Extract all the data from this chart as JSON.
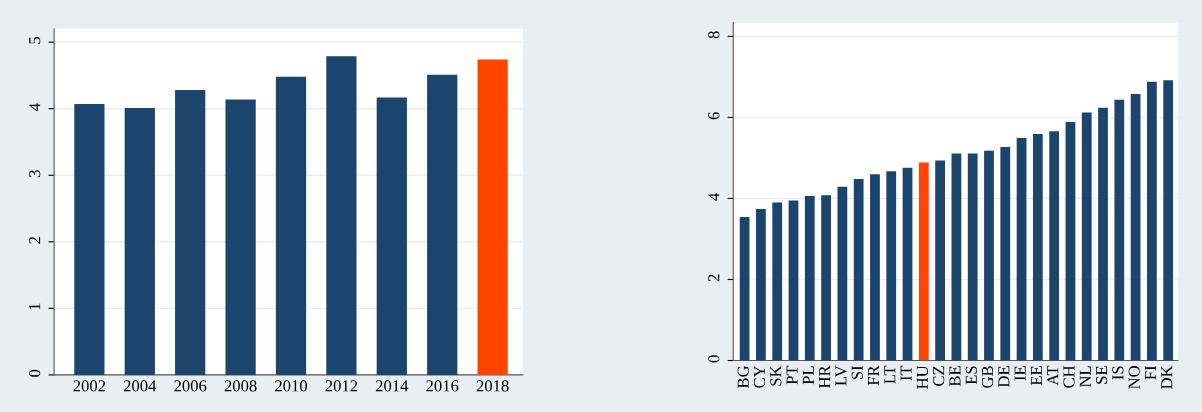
{
  "chart_data": [
    {
      "type": "bar",
      "categories": [
        "2002",
        "2004",
        "2006",
        "2008",
        "2010",
        "2012",
        "2014",
        "2016",
        "2018"
      ],
      "values": [
        4.07,
        4.01,
        4.28,
        4.14,
        4.48,
        4.79,
        4.17,
        4.51,
        4.74
      ],
      "colors": [
        "#1c456e",
        "#1c456e",
        "#1c456e",
        "#1c456e",
        "#1c456e",
        "#1c456e",
        "#1c456e",
        "#1c456e",
        "#ff4500"
      ],
      "ylim": [
        0,
        5.2
      ],
      "yticks": [
        0,
        1,
        2,
        3,
        4,
        5
      ],
      "grid": "y"
    },
    {
      "type": "bar",
      "categories": [
        "BG",
        "CY",
        "SK",
        "PT",
        "PL",
        "HR",
        "LV",
        "SI",
        "FR",
        "LT",
        "IT",
        "HU",
        "CZ",
        "BE",
        "ES",
        "GB",
        "DE",
        "IE",
        "EE",
        "AT",
        "CH",
        "NL",
        "SE",
        "IS",
        "NO",
        "FI",
        "DK"
      ],
      "values": [
        3.54,
        3.74,
        3.9,
        3.95,
        4.06,
        4.08,
        4.29,
        4.48,
        4.6,
        4.67,
        4.76,
        4.89,
        4.94,
        5.11,
        5.11,
        5.18,
        5.27,
        5.49,
        5.59,
        5.66,
        5.89,
        6.12,
        6.24,
        6.44,
        6.58,
        6.88,
        6.92
      ],
      "colors": [
        "#1c456e",
        "#1c456e",
        "#1c456e",
        "#1c456e",
        "#1c456e",
        "#1c456e",
        "#1c456e",
        "#1c456e",
        "#1c456e",
        "#1c456e",
        "#1c456e",
        "#ff4500",
        "#1c456e",
        "#1c456e",
        "#1c456e",
        "#1c456e",
        "#1c456e",
        "#1c456e",
        "#1c456e",
        "#1c456e",
        "#1c456e",
        "#1c456e",
        "#1c456e",
        "#1c456e",
        "#1c456e",
        "#1c456e",
        "#1c456e"
      ],
      "ylim": [
        0,
        8.34
      ],
      "yticks": [
        0,
        2,
        4,
        6,
        8
      ],
      "grid": "y"
    }
  ]
}
